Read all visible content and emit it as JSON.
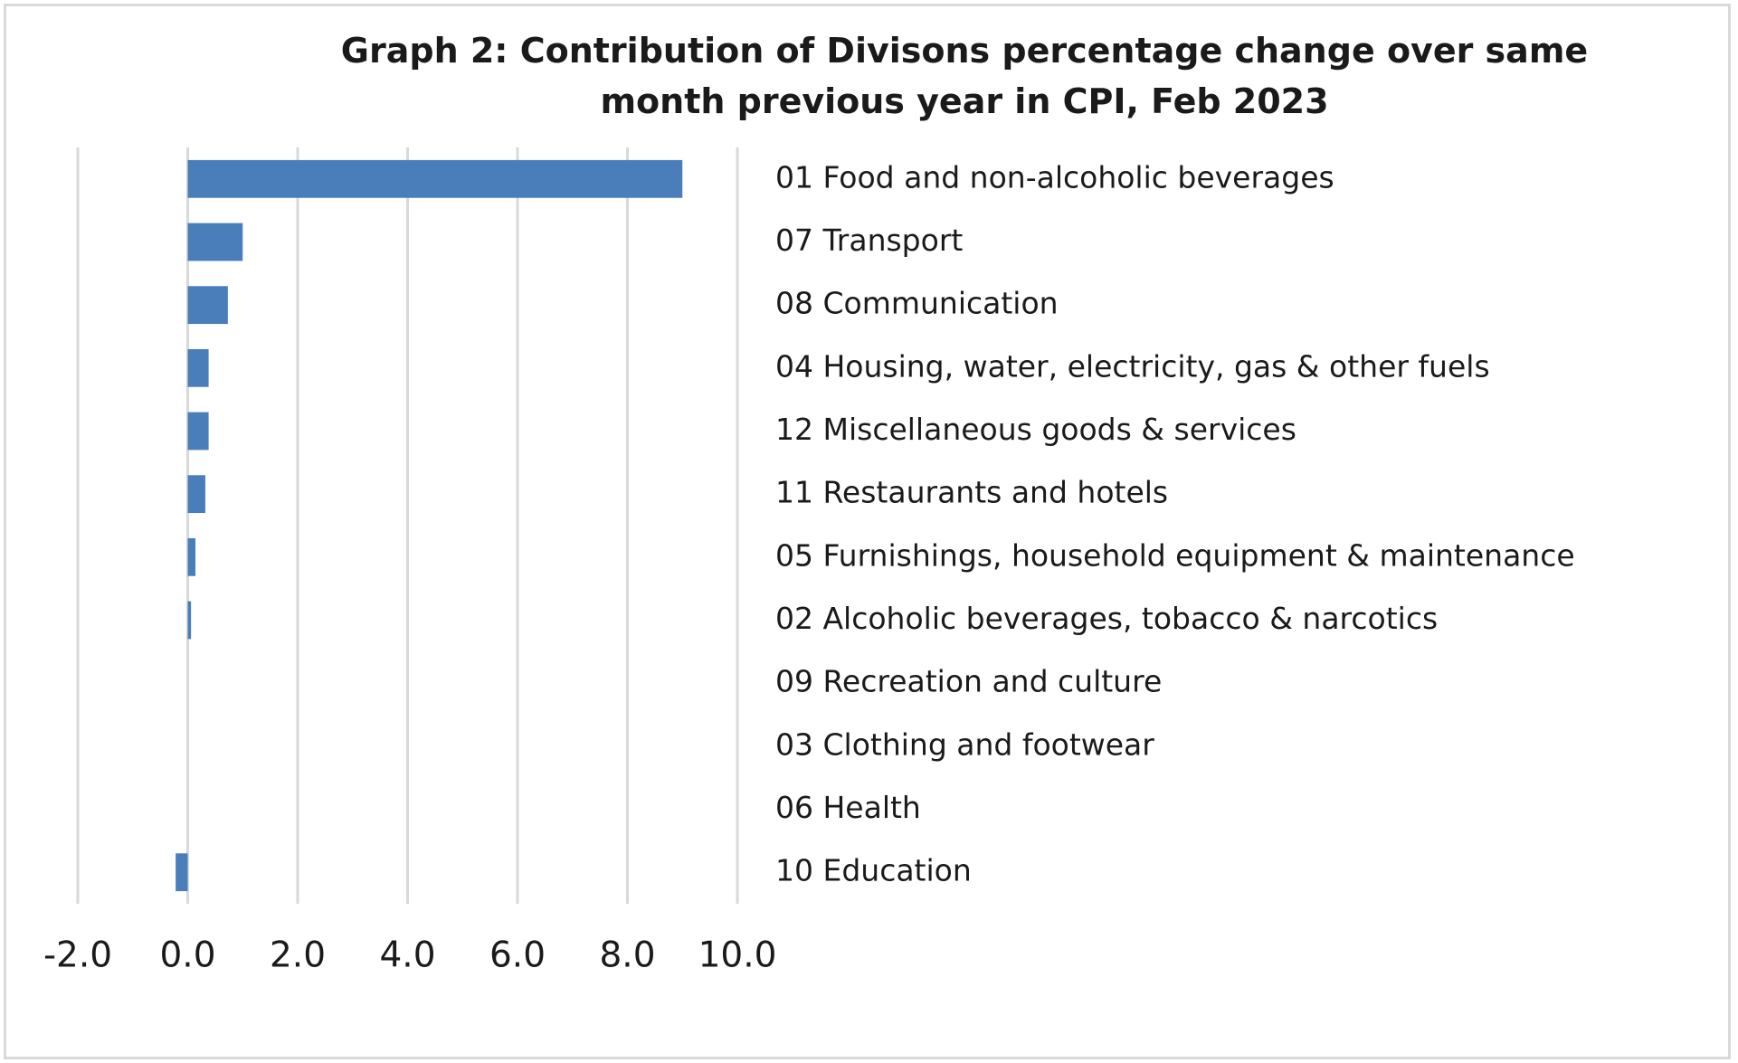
{
  "chart_data": {
    "type": "barh",
    "title": "Graph 2: Contribution of Divisons percentage change over same\nmonth previous year in CPI, Feb 2023",
    "categories": [
      "01 Food and non-alcoholic beverages",
      "07 Transport",
      "08 Communication",
      "04 Housing, water, electricity, gas & other fuels",
      "12 Miscellaneous goods & services",
      "11 Restaurants and hotels",
      "05 Furnishings, household equipment & maintenance",
      "02 Alcoholic beverages, tobacco & narcotics",
      "09 Recreation and culture",
      "03 Clothing and footwear",
      "06 Health",
      "10 Education"
    ],
    "values": [
      9.0,
      1.0,
      0.73,
      0.38,
      0.38,
      0.32,
      0.14,
      0.06,
      0,
      0,
      0,
      -0.22
    ],
    "color": "#4a7ebb",
    "xlim": [
      -2,
      10
    ],
    "xticks": [
      {
        "value": -2,
        "label": "-2.0"
      },
      {
        "value": 0,
        "label": "0.0"
      },
      {
        "value": 2,
        "label": "2.0"
      },
      {
        "value": 4,
        "label": "4.0"
      },
      {
        "value": 6,
        "label": "6.0"
      },
      {
        "value": 8,
        "label": "8.0"
      },
      {
        "value": 10,
        "label": "10.0"
      }
    ],
    "grid": true
  }
}
